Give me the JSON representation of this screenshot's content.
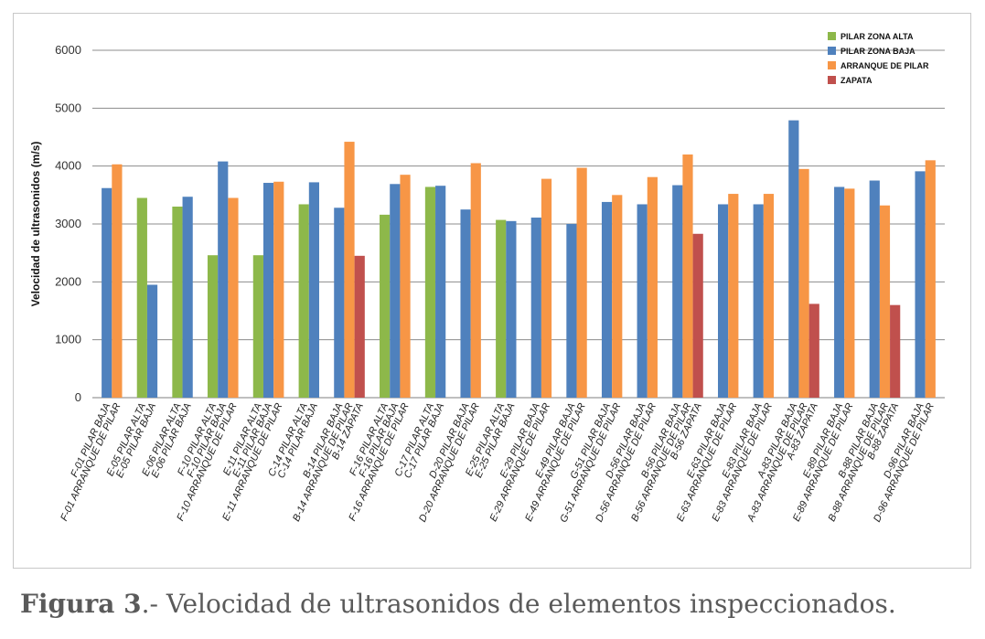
{
  "chart_data": {
    "type": "bar",
    "ylabel": "Velocidad de ultrasonidos (m/s)",
    "ylim": [
      0,
      6000
    ],
    "yticks": [
      0,
      1000,
      2000,
      3000,
      4000,
      5000,
      6000
    ],
    "grid": true,
    "legend_position": "top-right",
    "series_defs": [
      {
        "key": "alta",
        "name": "PILAR ZONA ALTA",
        "color": "#8db84a"
      },
      {
        "key": "baja",
        "name": "PILAR ZONA BAJA",
        "color": "#4f81bd"
      },
      {
        "key": "arranque",
        "name": "ARRANQUE DE PILAR",
        "color": "#f79646"
      },
      {
        "key": "zapata",
        "name": "ZAPATA",
        "color": "#c0504d"
      }
    ],
    "groups": [
      {
        "bars": [
          {
            "s": "baja",
            "label": "F-01 PILAR BAJA",
            "value": 3620
          },
          {
            "s": "arranque",
            "label": "F-01 ARRANQUE DE PILAR",
            "value": 4030
          }
        ]
      },
      {
        "bars": [
          {
            "s": "alta",
            "label": "E-05 PILAR ALTA",
            "value": 3450
          },
          {
            "s": "baja",
            "label": "E-05 PILAR BAJA",
            "value": 1950
          }
        ]
      },
      {
        "bars": [
          {
            "s": "alta",
            "label": "E-06 PILAR ALTA",
            "value": 3300
          },
          {
            "s": "baja",
            "label": "E-06 PILAR BAJA",
            "value": 3470
          }
        ]
      },
      {
        "bars": [
          {
            "s": "alta",
            "label": "F-10 PILAR ALTA",
            "value": 2460
          },
          {
            "s": "baja",
            "label": "F-10 PILAR BAJA",
            "value": 4080
          },
          {
            "s": "arranque",
            "label": "F-10 ARRANQUE DE PILAR",
            "value": 3450
          }
        ]
      },
      {
        "bars": [
          {
            "s": "alta",
            "label": "E-11 PILAR ALTA",
            "value": 2460
          },
          {
            "s": "baja",
            "label": "E-11 PILAR BAJA",
            "value": 3710
          },
          {
            "s": "arranque",
            "label": "E-11 ARRANQUE DE PILAR",
            "value": 3730
          }
        ]
      },
      {
        "bars": [
          {
            "s": "alta",
            "label": "C-14 PILAR ALTA",
            "value": 3340
          },
          {
            "s": "baja",
            "label": "C-14 PILAR BAJA",
            "value": 3720
          }
        ]
      },
      {
        "bars": [
          {
            "s": "baja",
            "label": "B-14 PILAR BAJA",
            "value": 3280
          },
          {
            "s": "arranque",
            "label": "B-14 ARRANQUE DE PILAR",
            "value": 4420
          },
          {
            "s": "zapata",
            "label": "B-14 ZAPATA",
            "value": 2450
          }
        ]
      },
      {
        "bars": [
          {
            "s": "alta",
            "label": "F-16 PILAR ALTA",
            "value": 3160
          },
          {
            "s": "baja",
            "label": "F-16 PILAR BAJA",
            "value": 3690
          },
          {
            "s": "arranque",
            "label": "F-16 ARRANQUE DE PILAR",
            "value": 3850
          }
        ]
      },
      {
        "bars": [
          {
            "s": "alta",
            "label": "C-17 PILAR ALTA",
            "value": 3640
          },
          {
            "s": "baja",
            "label": "C-17 PILAR BAJA",
            "value": 3660
          }
        ]
      },
      {
        "bars": [
          {
            "s": "baja",
            "label": "D-20 PILAR BAJA",
            "value": 3250
          },
          {
            "s": "arranque",
            "label": "D-20 ARRANQUE DE PILAR",
            "value": 4050
          }
        ]
      },
      {
        "bars": [
          {
            "s": "alta",
            "label": "E-25 PILAR ALTA",
            "value": 3070
          },
          {
            "s": "baja",
            "label": "E-25 PILAR BAJA",
            "value": 3050
          }
        ]
      },
      {
        "bars": [
          {
            "s": "baja",
            "label": "E-29 PILAR BAJA",
            "value": 3110
          },
          {
            "s": "arranque",
            "label": "E-29 ARRANQUE DE PILAR",
            "value": 3780
          }
        ]
      },
      {
        "bars": [
          {
            "s": "baja",
            "label": "E-49 PILAR BAJA",
            "value": 3000
          },
          {
            "s": "arranque",
            "label": "E-49 ARRANQUE DE PILAR",
            "value": 3970
          }
        ]
      },
      {
        "bars": [
          {
            "s": "baja",
            "label": "G-51 PILAR BAJA",
            "value": 3380
          },
          {
            "s": "arranque",
            "label": "G-51 ARRANQUE DE PILAR",
            "value": 3500
          }
        ]
      },
      {
        "bars": [
          {
            "s": "baja",
            "label": "D-56 PILAR BAJA",
            "value": 3340
          },
          {
            "s": "arranque",
            "label": "D-56 ARRANQUE DE PILAR",
            "value": 3810
          }
        ]
      },
      {
        "bars": [
          {
            "s": "baja",
            "label": "B-56 PILAR BAJA",
            "value": 3670
          },
          {
            "s": "arranque",
            "label": "B-56 ARRANQUE DE PILAR",
            "value": 4200
          },
          {
            "s": "zapata",
            "label": "B-56 ZAPATA",
            "value": 2830
          }
        ]
      },
      {
        "bars": [
          {
            "s": "baja",
            "label": "E-63 PILAR BAJA",
            "value": 3340
          },
          {
            "s": "arranque",
            "label": "E-63 ARRANQUE DE PILAR",
            "value": 3520
          }
        ]
      },
      {
        "bars": [
          {
            "s": "baja",
            "label": "E-83 PILAR BAJA",
            "value": 3340
          },
          {
            "s": "arranque",
            "label": "E-83 ARRANQUE DE PILAR",
            "value": 3520
          }
        ]
      },
      {
        "bars": [
          {
            "s": "baja",
            "label": "A-83 PILAR BAJA",
            "value": 4790
          },
          {
            "s": "arranque",
            "label": "A-83 ARRANQUE DE PILAR",
            "value": 3950
          },
          {
            "s": "zapata",
            "label": "A-83 ZAPATA",
            "value": 1620
          }
        ]
      },
      {
        "bars": [
          {
            "s": "baja",
            "label": "E-89 PILAR BAJA",
            "value": 3640
          },
          {
            "s": "arranque",
            "label": "E-89 ARRANQUE DE PILAR",
            "value": 3610
          }
        ]
      },
      {
        "bars": [
          {
            "s": "baja",
            "label": "B-88 PILAR BAJA",
            "value": 3750
          },
          {
            "s": "arranque",
            "label": "B-88 ARRANQUE DE PILAR",
            "value": 3320
          },
          {
            "s": "zapata",
            "label": "B-88 ZAPATA",
            "value": 1600
          }
        ]
      },
      {
        "bars": [
          {
            "s": "baja",
            "label": "D-96 PILAR BAJA",
            "value": 3910
          },
          {
            "s": "arranque",
            "label": "D-96 ARRANQUE DE PILAR",
            "value": 4100
          }
        ]
      }
    ]
  },
  "caption": {
    "figure_label": "Figura 3",
    "text": ".- Velocidad de ultrasonidos de elementos inspeccionados."
  }
}
